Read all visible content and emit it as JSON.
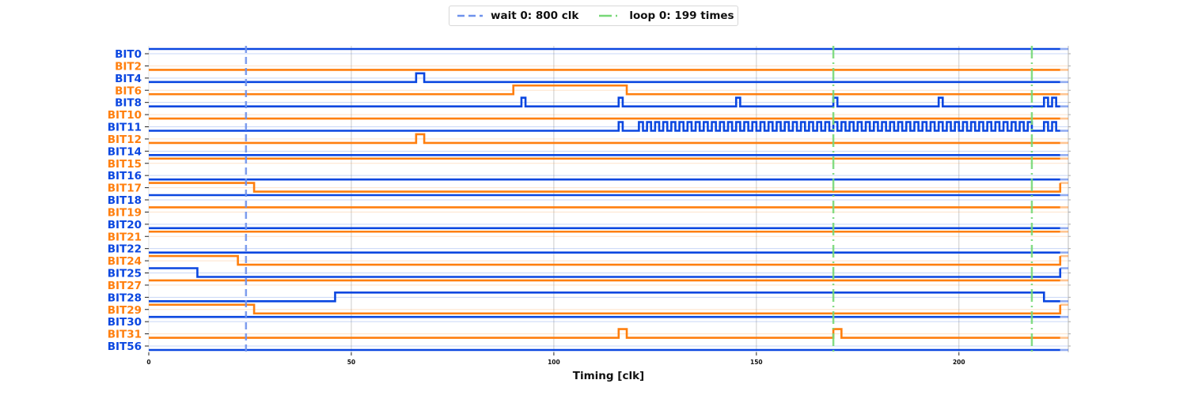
{
  "chart_data": {
    "type": "line",
    "subtype": "digital-timing-diagram",
    "xlabel": "Timing [clk]",
    "ylabel": "",
    "xlim": [
      0,
      227
    ],
    "x_ticks": [
      0,
      50,
      100,
      150,
      200
    ],
    "grid": true,
    "end_time": 225,
    "colors": {
      "even_row": "#0b47e0",
      "odd_row": "#ff7f0e",
      "wait_marker": "#6f92ec",
      "loop_marker": "#77d877",
      "grid": "#cccccc"
    },
    "legend": {
      "placement": "top-center",
      "entries": [
        {
          "label": "wait 0: 800 clk",
          "style": "dashed",
          "color": "#6f92ec"
        },
        {
          "label": "loop 0: 199 times",
          "style": "dashdot",
          "color": "#77d877"
        }
      ]
    },
    "markers": [
      {
        "type": "wait",
        "x": 24
      },
      {
        "type": "loop",
        "x": 169
      },
      {
        "type": "loop",
        "x": 218
      }
    ],
    "signals": [
      {
        "name": "BIT0",
        "initial": 1,
        "edges": []
      },
      {
        "name": "BIT2",
        "initial": 0,
        "edges": []
      },
      {
        "name": "BIT4",
        "initial": 0,
        "edges": [
          66,
          68
        ]
      },
      {
        "name": "BIT6",
        "initial": 0,
        "edges": [
          90,
          118
        ]
      },
      {
        "name": "BIT8",
        "initial": 0,
        "edges": [
          92,
          93,
          116,
          117,
          145,
          146,
          169,
          170,
          195,
          196,
          221,
          222,
          223,
          224
        ]
      },
      {
        "name": "BIT10",
        "initial": 0,
        "edges": []
      },
      {
        "name": "BIT11",
        "initial": 0,
        "edges": [
          116,
          117,
          121,
          122,
          123,
          124,
          125,
          126,
          127,
          128,
          129,
          130,
          131,
          132,
          133,
          134,
          135,
          136,
          137,
          138,
          139,
          140,
          141,
          142,
          143,
          144,
          145,
          146,
          147,
          148,
          149,
          150,
          151,
          152,
          153,
          154,
          155,
          156,
          157,
          158,
          159,
          160,
          161,
          162,
          163,
          164,
          165,
          166,
          167,
          168,
          169,
          170,
          171,
          172,
          173,
          174,
          175,
          176,
          177,
          178,
          179,
          180,
          181,
          182,
          183,
          184,
          185,
          186,
          187,
          188,
          189,
          190,
          191,
          192,
          193,
          194,
          195,
          196,
          197,
          198,
          199,
          200,
          201,
          202,
          203,
          204,
          205,
          206,
          207,
          208,
          209,
          210,
          211,
          212,
          213,
          214,
          215,
          216,
          217,
          218,
          221,
          222,
          223,
          224
        ]
      },
      {
        "name": "BIT12",
        "initial": 0,
        "edges": [
          66,
          68
        ]
      },
      {
        "name": "BIT14",
        "initial": 0,
        "edges": []
      },
      {
        "name": "BIT15",
        "initial": 1,
        "edges": []
      },
      {
        "name": "BIT16",
        "initial": 0,
        "edges": []
      },
      {
        "name": "BIT17",
        "initial": 1,
        "edges": [
          26,
          225
        ]
      },
      {
        "name": "BIT18",
        "initial": 1,
        "edges": []
      },
      {
        "name": "BIT19",
        "initial": 1,
        "edges": []
      },
      {
        "name": "BIT20",
        "initial": 0,
        "edges": []
      },
      {
        "name": "BIT21",
        "initial": 1,
        "edges": []
      },
      {
        "name": "BIT22",
        "initial": 0,
        "edges": []
      },
      {
        "name": "BIT24",
        "initial": 1,
        "edges": [
          22,
          225
        ]
      },
      {
        "name": "BIT25",
        "initial": 1,
        "edges": [
          12,
          225
        ]
      },
      {
        "name": "BIT27",
        "initial": 1,
        "edges": []
      },
      {
        "name": "BIT28",
        "initial": 0,
        "edges": [
          46,
          221
        ]
      },
      {
        "name": "BIT29",
        "initial": 1,
        "edges": [
          26,
          225
        ]
      },
      {
        "name": "BIT30",
        "initial": 1,
        "edges": []
      },
      {
        "name": "BIT31",
        "initial": 0,
        "edges": [
          116,
          118,
          169,
          171
        ]
      },
      {
        "name": "BIT56",
        "initial": 0,
        "edges": []
      }
    ]
  }
}
